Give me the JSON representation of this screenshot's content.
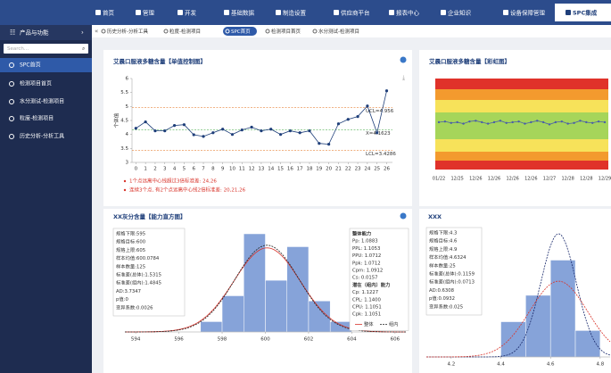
{
  "nav": {
    "items": [
      "首页",
      "管理",
      "开发",
      "基础数据",
      "制造设置",
      "供应商平台",
      "报表中心",
      "企业知识",
      "设备保障管理",
      "SPC集成"
    ],
    "active_index": 9
  },
  "sidebar": {
    "title": "产品与功能",
    "search_placeholder": "Search...",
    "items": [
      "SPC首页",
      "检测项目首页",
      "水分测试-检测项目",
      "粒度-检测项目",
      "历史分析-分析工具"
    ],
    "active_index": 0
  },
  "tabs": {
    "items": [
      "历史分析-分析工具",
      "粒度-检测项目",
      "SPC首页",
      "检测项目首页",
      "水分测试-检测项目"
    ],
    "active_index": 2
  },
  "chart_data": [
    {
      "type": "control",
      "title": "艾晨口服液多糖含量【单值控制图】",
      "y_label": "个体值",
      "color": "#1f3f7a",
      "x": [
        0,
        1,
        2,
        3,
        4,
        5,
        6,
        7,
        8,
        9,
        10,
        11,
        12,
        13,
        14,
        15,
        16,
        17,
        18,
        19,
        20,
        21,
        22,
        23,
        24,
        25,
        26
      ],
      "values": [
        4.22,
        4.45,
        4.13,
        4.13,
        4.32,
        4.35,
        3.99,
        3.93,
        4.06,
        4.19,
        4.0,
        4.16,
        4.26,
        4.13,
        4.19,
        4.0,
        4.13,
        4.06,
        4.13,
        3.68,
        3.65,
        4.38,
        4.54,
        4.64,
        5.02,
        4.06,
        5.56
      ],
      "xlim": [
        -0.4,
        26.6
      ],
      "xticks": [
        0,
        1,
        2,
        3,
        4,
        5,
        6,
        7,
        8,
        9,
        10,
        11,
        12,
        13,
        14,
        15,
        16,
        17,
        18,
        19,
        20,
        21,
        22,
        23,
        24,
        25,
        26
      ],
      "ylim": [
        3,
        6
      ],
      "yticks": [
        3,
        3.5,
        4,
        4.5,
        5,
        5.5,
        6
      ],
      "control_limits": [
        {
          "value": 4.956,
          "label": "UCL=4.956",
          "color": "#e8833a"
        },
        {
          "value": 4.1623,
          "label": "X=4.1623",
          "color": "#58b35a"
        },
        {
          "value": 3.4286,
          "label": "LCL=3.4286",
          "color": "#e8833a"
        }
      ],
      "annotations": [
        "1个点远离中心线超过3倍标准差: 24,26",
        "连续3个点, 有2个点远离中心线2倍标准差: 20,21,26"
      ]
    },
    {
      "type": "rainbow",
      "title": "艾晨口服液多糖含量【彩虹图】",
      "color": "#4a5fa8",
      "categories": [
        "01/22",
        null,
        null,
        "12/25",
        null,
        null,
        "12/26",
        null,
        null,
        "12/26",
        null,
        null,
        "12/26",
        null,
        null,
        "12/26",
        null,
        null,
        "12/27",
        null,
        null,
        "12/28",
        null,
        null,
        "12/28",
        null,
        null,
        "12/29"
      ],
      "values": [
        4.2,
        4.22,
        4.18,
        4.2,
        4.16,
        4.22,
        4.24,
        4.2,
        4.16,
        4.2,
        4.24,
        4.18,
        4.2,
        4.22,
        4.16,
        4.2,
        4.24,
        4.2,
        4.14,
        4.2,
        4.22,
        4.16,
        4.18,
        4.24,
        4.2,
        4.18,
        4.22,
        4.2
      ],
      "ylim": [
        2.9,
        5.4
      ]
    },
    {
      "type": "histogram",
      "title": "XX灰分含量【能力直方图】",
      "color": "#86a3d9",
      "bins": [
        597,
        598,
        599,
        600,
        601,
        602,
        603,
        604
      ],
      "counts": [
        4,
        14,
        38,
        20,
        33,
        12,
        4
      ],
      "xlim": [
        593.5,
        606.5
      ],
      "xticks": [
        594,
        596,
        598,
        600,
        602,
        604,
        606
      ],
      "stats": [
        "规格下限:595",
        "规格目标:600",
        "规格上限:605",
        "样本均值:600.0784",
        "样本数量:125",
        "标准差(总体):1.5315",
        "标准差(组内):1.4845",
        "AD:3.7347",
        "p值:0",
        "变异系数:0.0026"
      ],
      "capability": {
        "overall_title": "整体能力",
        "overall": [
          "Pp: 1.0883",
          "PPL: 1.1053",
          "PPU: 1.0712",
          "Ppk: 1.0712",
          "Cpm: 1.0912",
          "Cs: 0.0157"
        ],
        "within_title": "潜在（组内）能力",
        "within": [
          "Cp: 1.1227",
          "CPL: 1.1400",
          "CPU: 1.1051",
          "Cpk: 1.1051"
        ]
      },
      "curves": [
        {
          "name": "整体",
          "mean": 600.0784,
          "sd": 1.5315,
          "color": "#d9342b",
          "dashed": false
        },
        {
          "name": "组内",
          "mean": 600.0784,
          "sd": 1.4845,
          "color": "#222222",
          "dashed": true
        }
      ]
    },
    {
      "type": "histogram",
      "title": "XXX",
      "color": "#86a3d9",
      "bins": [
        4.4,
        4.5,
        4.6,
        4.7,
        4.8
      ],
      "counts": [
        4,
        7,
        11,
        3
      ],
      "xlim": [
        4.1,
        4.84
      ],
      "xticks": [
        4.2,
        4.4,
        4.6,
        4.8
      ],
      "stats": [
        "规格下限:4.3",
        "规格目标:4.6",
        "规格上限:4.9",
        "样本均值:4.6324",
        "样本数量:25",
        "标准差(总体):0.1159",
        "标准差(组内):0.0713",
        "AD:0.6308",
        "p值:0.0932",
        "变异系数:0.025"
      ],
      "curves": [
        {
          "mean": 4.6324,
          "sd": 0.0713,
          "color": "#1a2a6c",
          "dashed": true
        },
        {
          "mean": 4.6324,
          "sd": 0.1159,
          "color": "#d9342b",
          "dashed": true
        }
      ]
    }
  ]
}
